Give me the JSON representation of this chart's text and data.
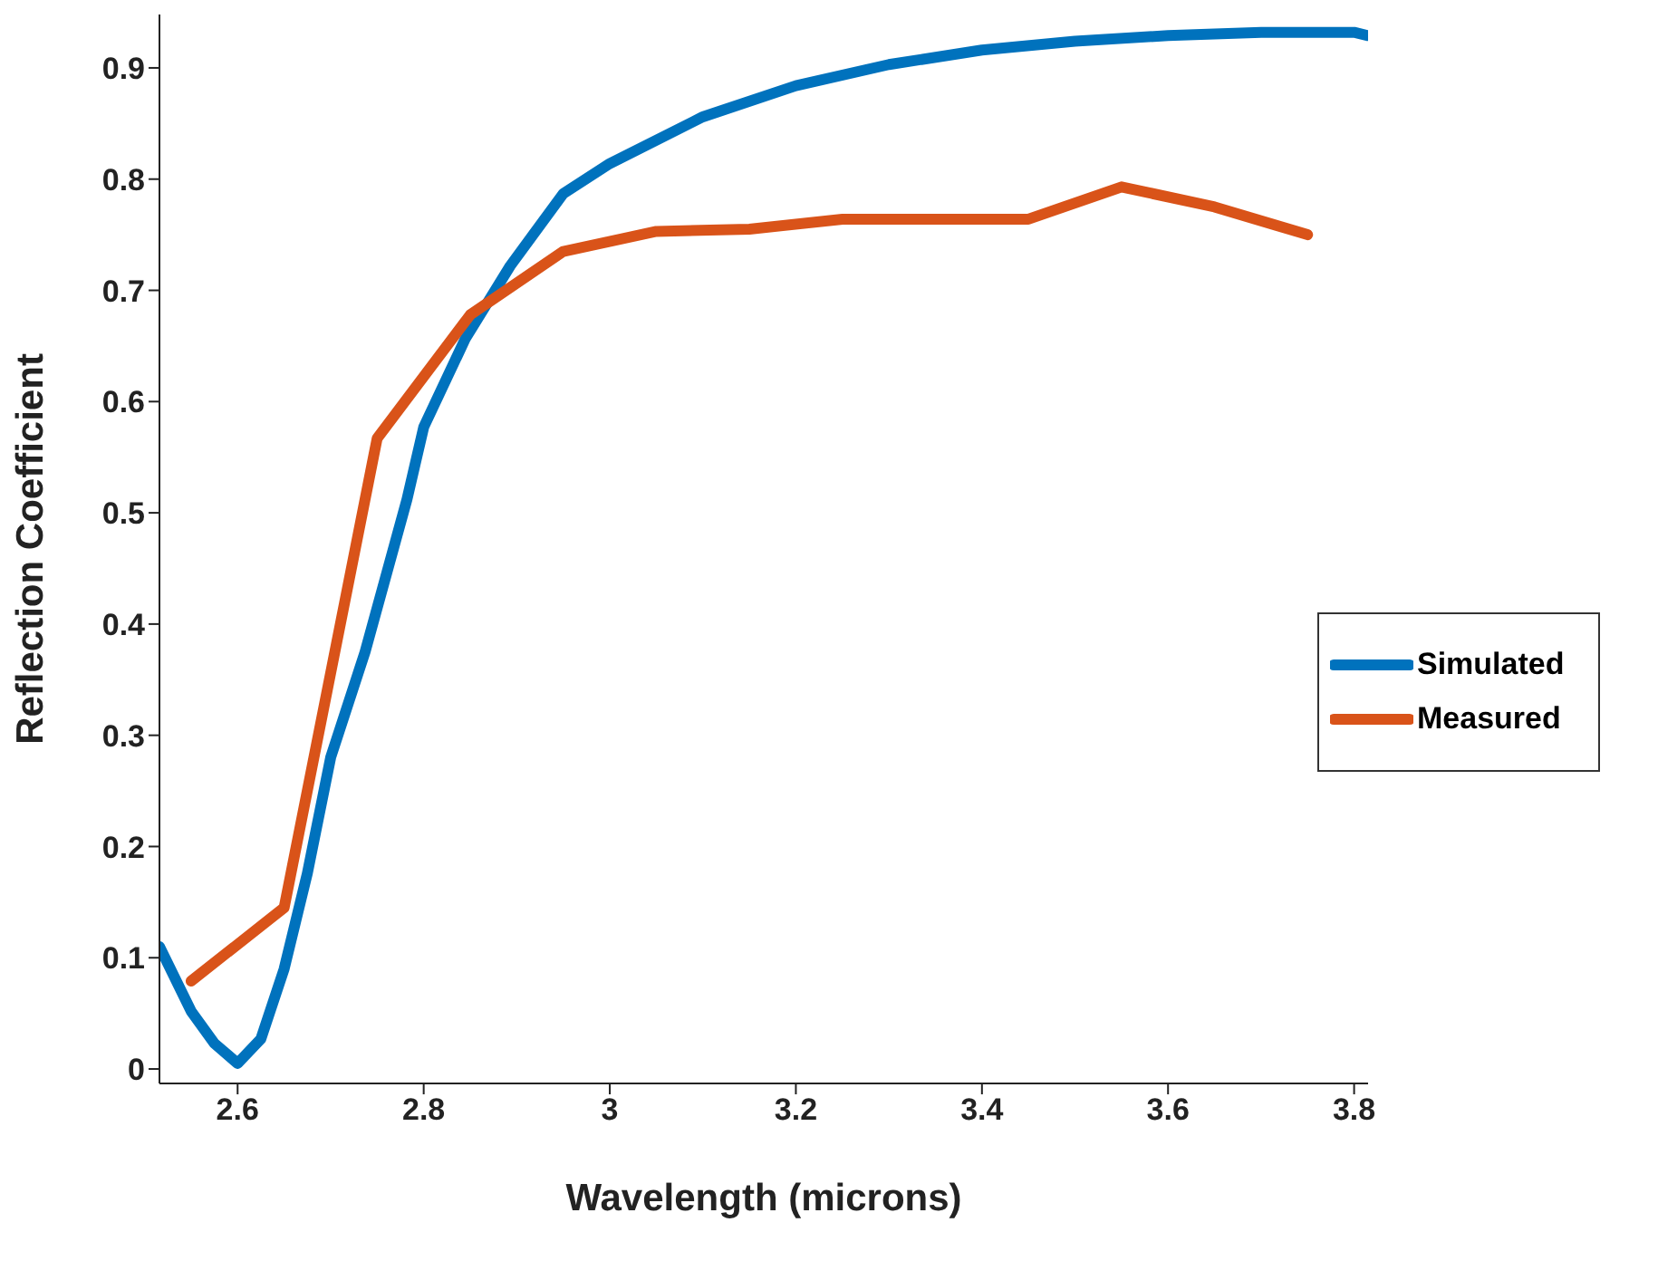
{
  "chart_data": {
    "type": "line",
    "xlabel": "Wavelength (microns)",
    "ylabel": "Reflection Coefficient",
    "xlim": [
      2.516,
      3.815
    ],
    "ylim": [
      -0.013,
      0.948
    ],
    "xticks": [
      2.6,
      2.8,
      3,
      3.2,
      3.4,
      3.6,
      3.8
    ],
    "yticks": [
      0,
      0.1,
      0.2,
      0.3,
      0.4,
      0.5,
      0.6,
      0.7,
      0.8,
      0.9
    ],
    "grid": false,
    "legend": "right",
    "line_style": "solid",
    "marker": "none",
    "series": [
      {
        "name": "Simulated",
        "color": "#0072bd",
        "x": [
          2.516,
          2.55,
          2.575,
          2.6,
          2.625,
          2.65,
          2.675,
          2.7,
          2.737,
          2.782,
          2.8,
          2.845,
          2.893,
          2.95,
          3.0,
          3.1,
          3.2,
          3.3,
          3.4,
          3.5,
          3.6,
          3.7,
          3.8,
          3.815
        ],
        "values": [
          0.11,
          0.052,
          0.023,
          0.005,
          0.027,
          0.09,
          0.176,
          0.28,
          0.375,
          0.512,
          0.577,
          0.657,
          0.722,
          0.787,
          0.814,
          0.856,
          0.884,
          0.903,
          0.916,
          0.924,
          0.929,
          0.932,
          0.932,
          0.929
        ]
      },
      {
        "name": "Measured",
        "color": "#d95319",
        "x": [
          2.55,
          2.65,
          2.75,
          2.85,
          2.95,
          3.05,
          3.15,
          3.25,
          3.35,
          3.45,
          3.55,
          3.65,
          3.75
        ],
        "values": [
          0.079,
          0.145,
          0.567,
          0.678,
          0.735,
          0.753,
          0.755,
          0.764,
          0.764,
          0.764,
          0.793,
          0.775,
          0.75
        ]
      }
    ]
  }
}
